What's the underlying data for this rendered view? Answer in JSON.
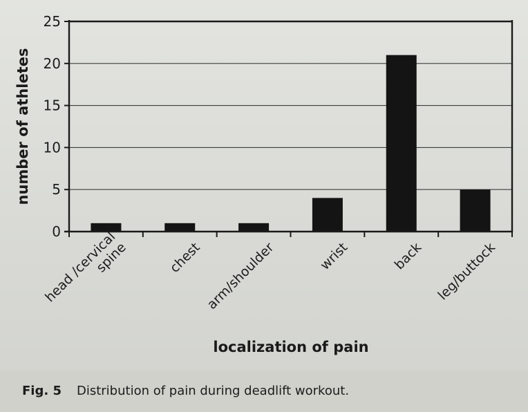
{
  "chart_data": {
    "type": "bar",
    "categories": [
      [
        "head /cervical",
        "spine"
      ],
      [
        "chest"
      ],
      [
        "arm/shoulder"
      ],
      [
        "wrist"
      ],
      [
        "back"
      ],
      [
        "leg/buttock"
      ]
    ],
    "values": [
      1,
      1,
      1,
      4,
      21,
      5
    ],
    "xlabel": "localization of pain",
    "ylabel": "number of athletes",
    "ylim": [
      0,
      25
    ],
    "yticks": [
      0,
      5,
      10,
      15,
      20,
      25
    ],
    "grid": "horizontal",
    "bar_color": "#141414"
  },
  "caption": {
    "label": "Fig. 5",
    "text": "Distribution of pain during deadlift workout."
  }
}
